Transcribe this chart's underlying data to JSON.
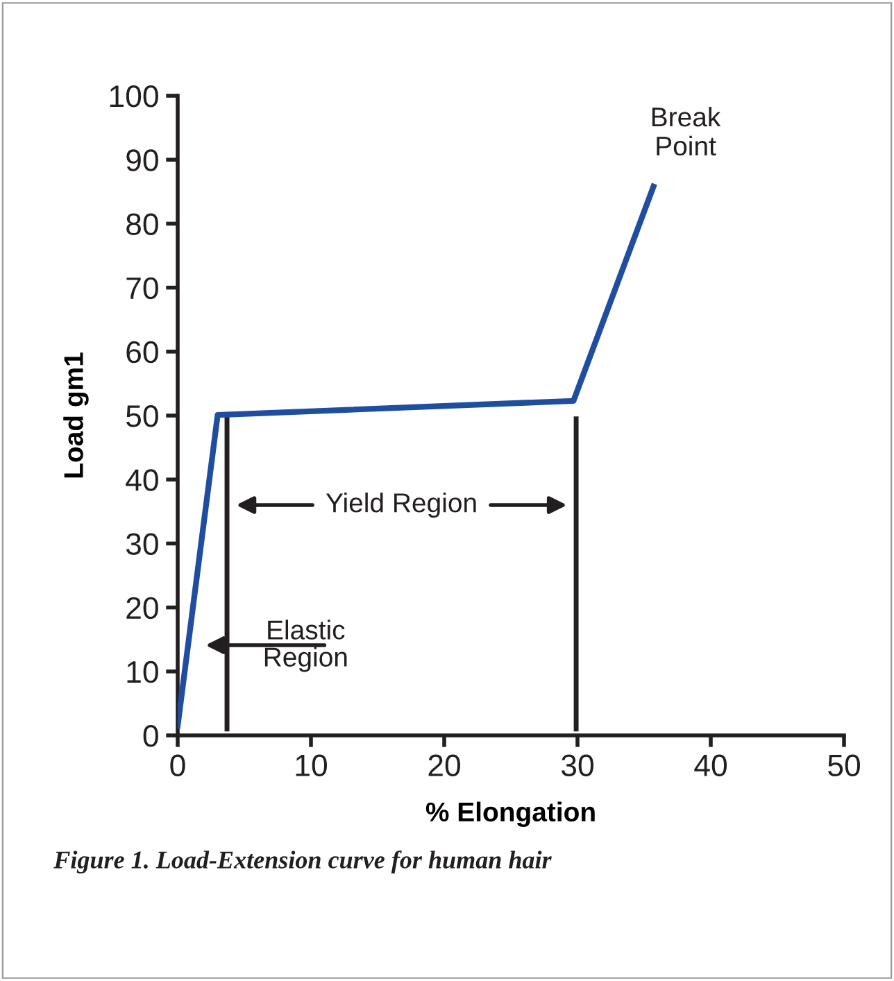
{
  "chart_data": {
    "type": "line",
    "xlabel": "% Elongation",
    "ylabel": "Load gm1",
    "x": [
      0,
      3.0,
      29.7,
      35.7
    ],
    "series": [
      {
        "color": "#1f4ea0",
        "values": [
          1.5,
          50.1,
          52.3,
          85.8
        ]
      }
    ],
    "xlim": [
      0,
      50
    ],
    "xticks": [
      0,
      10,
      20,
      30,
      40,
      50
    ],
    "ylim": [
      0,
      100
    ],
    "yticks": [
      0,
      10,
      20,
      30,
      40,
      50,
      60,
      70,
      80,
      90,
      100
    ],
    "ref_lines": [
      {
        "axis": "x",
        "value": 3.7,
        "color": "#231f20"
      },
      {
        "axis": "x",
        "value": 29.9,
        "color": "#231f20"
      }
    ],
    "annotations": [
      {
        "text": "Break Point",
        "x": 35.7,
        "y": 85.8
      },
      "Yield Region",
      "Elastic Region",
      "Figure 1. Load-Extension curve for human hair"
    ],
    "grid": false,
    "legend": false,
    "marker": "none",
    "line_style": "solid"
  }
}
